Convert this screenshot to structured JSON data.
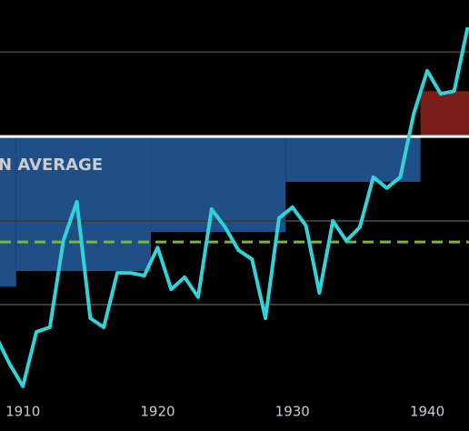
{
  "chart_data": {
    "type": "line",
    "annotation": "N AVERAGE",
    "x": [
      1908,
      1909,
      1910,
      1911,
      1912,
      1913,
      1914,
      1915,
      1916,
      1917,
      1918,
      1919,
      1920,
      1921,
      1922,
      1923,
      1924,
      1925,
      1926,
      1927,
      1928,
      1929,
      1930,
      1931,
      1932,
      1933,
      1934,
      1935,
      1936,
      1937,
      1938,
      1939,
      1940,
      1941,
      1942,
      1943
    ],
    "values": [
      14.0,
      7.0,
      1.2,
      15.1,
      16.3,
      38.4,
      48.4,
      18.6,
      16.3,
      30.2,
      30.2,
      29.5,
      36.7,
      26.0,
      29.1,
      24.0,
      46.5,
      41.9,
      36.0,
      33.7,
      18.6,
      44.2,
      47.0,
      42.3,
      25.1,
      43.5,
      38.4,
      41.9,
      54.7,
      51.9,
      54.7,
      70.9,
      81.9,
      76.0,
      76.7,
      93.0
    ],
    "color": "#2fd3d8",
    "step_edges": [
      1899.5,
      1909.5,
      1919.5,
      1929.5,
      1939.5,
      1949.5
    ],
    "step_values": [
      26.7,
      30.7,
      40.7,
      53.5,
      76.7
    ],
    "below_color": "#1e4f86",
    "above_color": "#7a1f1a",
    "reference": 65.1,
    "reference_color": "#ffffff",
    "dashed_level": 38.1,
    "dashed_color": "#7bb82a",
    "gridlines": [
      22.1,
      43.5,
      86.7
    ],
    "xlim": [
      1908.3,
      1943.1
    ],
    "ylim": [
      0,
      100
    ],
    "xticks": [
      1910,
      1920,
      1930,
      1940
    ]
  }
}
